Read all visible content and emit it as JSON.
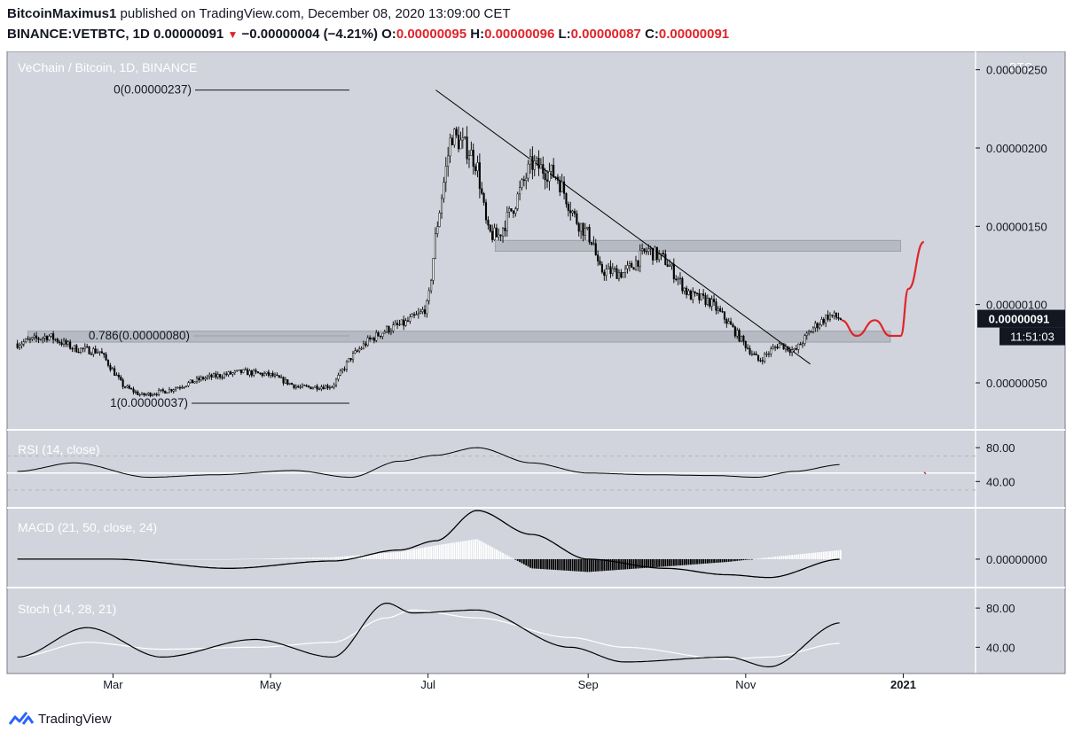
{
  "header": {
    "author": "BitcoinMaximus1",
    "published_text": "published on TradingView.com, December 08, 2020 13:09:00 CET",
    "symbol": "BINANCE:VETBTC, 1D",
    "last": "0.00000091",
    "change_arrow": "▼",
    "change": "−0.00000004 (−4.21%)",
    "o_label": "O:",
    "o_value": "0.00000095",
    "h_label": "H:",
    "h_value": "0.00000096",
    "l_label": "L:",
    "l_value": "0.00000087",
    "c_label": "C:",
    "c_value": "0.00000091"
  },
  "footer": {
    "brand": "TradingView",
    "logo_icon": "tradingview-logo-icon"
  },
  "colors": {
    "plot_bg": "#d1d4dc",
    "accent_red": "#e0242a",
    "line": "#000000",
    "zone": "#b2b5be"
  },
  "chart_data": [
    {
      "type": "candlestick",
      "title": "VeChain / Bitcoin, 1D, BINANCE",
      "y_unit": "BTC",
      "yscale": "linear",
      "ylim": [
        5e-08,
        2.65e-06
      ],
      "y_ticks": [
        "0.00000050",
        "0.00000100",
        "0.00000150",
        "0.00000200",
        "0.00000250"
      ],
      "x_ticks": [
        "Mar",
        "May",
        "Jul",
        "Sep",
        "Nov",
        "2021"
      ],
      "grid": false,
      "close_series": {
        "dates": [
          "2020-01-24",
          "2020-02-05",
          "2020-02-15",
          "2020-02-25",
          "2020-03-05",
          "2020-03-12",
          "2020-03-22",
          "2020-04-05",
          "2020-04-20",
          "2020-05-01",
          "2020-05-12",
          "2020-05-25",
          "2020-06-01",
          "2020-06-08",
          "2020-06-15",
          "2020-06-22",
          "2020-06-28",
          "2020-07-01",
          "2020-07-04",
          "2020-07-10",
          "2020-07-17",
          "2020-07-20",
          "2020-07-24",
          "2020-07-28",
          "2020-08-04",
          "2020-08-10",
          "2020-08-20",
          "2020-08-27",
          "2020-09-03",
          "2020-09-05",
          "2020-09-15",
          "2020-09-24",
          "2020-10-01",
          "2020-10-10",
          "2020-10-18",
          "2020-10-24",
          "2020-10-31",
          "2020-11-06",
          "2020-11-14",
          "2020-11-20",
          "2020-11-27",
          "2020-12-03",
          "2020-12-08"
        ],
        "close": [
          7.5e-07,
          8e-07,
          7.2e-07,
          7e-07,
          4.8e-07,
          4.2e-07,
          4.5e-07,
          5.3e-07,
          5.7e-07,
          5.5e-07,
          4.7e-07,
          4.8e-07,
          6.6e-07,
          7.7e-07,
          8.4e-07,
          8.8e-07,
          9.4e-07,
          1e-06,
          1.45e-06,
          2.09e-06,
          1.98e-06,
          1.89e-06,
          1.46e-06,
          1.43e-06,
          1.66e-06,
          1.9e-06,
          1.82e-06,
          1.55e-06,
          1.4e-06,
          1.22e-06,
          1.2e-06,
          1.35e-06,
          1.28e-06,
          1.06e-06,
          1.02e-06,
          9.1e-07,
          7.6e-07,
          6.4e-07,
          7.5e-07,
          7e-07,
          8.5e-07,
          9.3e-07,
          9.1e-07
        ]
      },
      "annotations": [
        {
          "type": "fib_level",
          "label": "0(0.00000237)",
          "value": 2.37e-06
        },
        {
          "type": "fib_level",
          "label": "0.786(0.00000080)",
          "value": 8e-07
        },
        {
          "type": "fib_level",
          "label": "1(0.00000037)",
          "value": 3.7e-07
        },
        {
          "type": "zone",
          "from": "2020-07-27",
          "to": "2020-12-31",
          "low": 1.34e-06,
          "high": 1.41e-06
        },
        {
          "type": "zone",
          "from": "2020-01-28",
          "to": "2020-12-27",
          "low": 7.6e-07,
          "high": 8.3e-07
        },
        {
          "type": "descending_trendline",
          "from": {
            "date": "2020-07-04",
            "value": 2.37e-06
          },
          "to": {
            "date": "2020-11-26",
            "value": 6.2e-07
          }
        },
        {
          "type": "projection",
          "color": "#e0242a",
          "path_dates": [
            "2020-12-08",
            "2020-12-14",
            "2020-12-21",
            "2020-12-27",
            "2020-12-31",
            "2021-01-03",
            "2021-01-09"
          ],
          "path_values": [
            9e-07,
            8e-07,
            9e-07,
            8e-07,
            8e-07,
            1.1e-06,
            1.4e-06
          ]
        }
      ],
      "price_label": {
        "value": "0.00000091",
        "countdown": "11:51:03"
      }
    },
    {
      "type": "line",
      "title": "RSI (14, close)",
      "y_ticks": [
        "80.00",
        "40.00"
      ],
      "bands": [
        70,
        30
      ],
      "reference_line": 50,
      "ylim": [
        10,
        100
      ],
      "x": [
        "2020-01-24",
        "2020-02-15",
        "2020-03-15",
        "2020-04-10",
        "2020-05-10",
        "2020-06-01",
        "2020-06-20",
        "2020-07-04",
        "2020-07-20",
        "2020-08-10",
        "2020-09-01",
        "2020-09-25",
        "2020-10-20",
        "2020-11-05",
        "2020-11-20",
        "2020-12-08"
      ],
      "y": [
        52,
        62,
        45,
        48,
        53,
        45,
        64,
        71,
        80,
        62,
        50,
        48,
        47,
        45,
        52,
        60
      ]
    },
    {
      "type": "line+bar",
      "title": "MACD (21, 50, close, 24)",
      "y_ticks": [
        "0.00000000"
      ],
      "ylim": [
        -3e-07,
        5.5e-07
      ],
      "x": [
        "2020-01-24",
        "2020-03-01",
        "2020-04-15",
        "2020-05-25",
        "2020-06-20",
        "2020-07-04",
        "2020-07-20",
        "2020-08-10",
        "2020-09-01",
        "2020-10-01",
        "2020-10-25",
        "2020-11-10",
        "2020-12-08"
      ],
      "macd": [
        0.0,
        0.0,
        -1e-07,
        -2e-08,
        1e-07,
        2e-07,
        5.3e-07,
        2.7e-07,
        0.0,
        -1e-07,
        -1.7e-07,
        -2e-07,
        0.0
      ],
      "histogram": [
        0.0,
        0.0,
        0.0,
        2e-08,
        8e-08,
        1.5e-07,
        2.2e-07,
        -1e-07,
        -1.4e-07,
        -8e-08,
        -3e-08,
        2e-08,
        1e-07
      ]
    },
    {
      "type": "line",
      "title": "Stoch (14, 28, 21)",
      "y_ticks": [
        "80.00",
        "40.00"
      ],
      "ylim": [
        15,
        100
      ],
      "x": [
        "2020-01-24",
        "2020-02-20",
        "2020-03-20",
        "2020-04-25",
        "2020-05-25",
        "2020-06-15",
        "2020-06-25",
        "2020-07-20",
        "2020-08-25",
        "2020-09-15",
        "2020-10-25",
        "2020-11-10",
        "2020-12-08"
      ],
      "k": [
        30,
        60,
        30,
        48,
        30,
        85,
        75,
        78,
        40,
        25,
        30,
        20,
        65
      ],
      "d": [
        30,
        45,
        38,
        40,
        45,
        70,
        78,
        70,
        50,
        40,
        28,
        30,
        44
      ]
    }
  ]
}
